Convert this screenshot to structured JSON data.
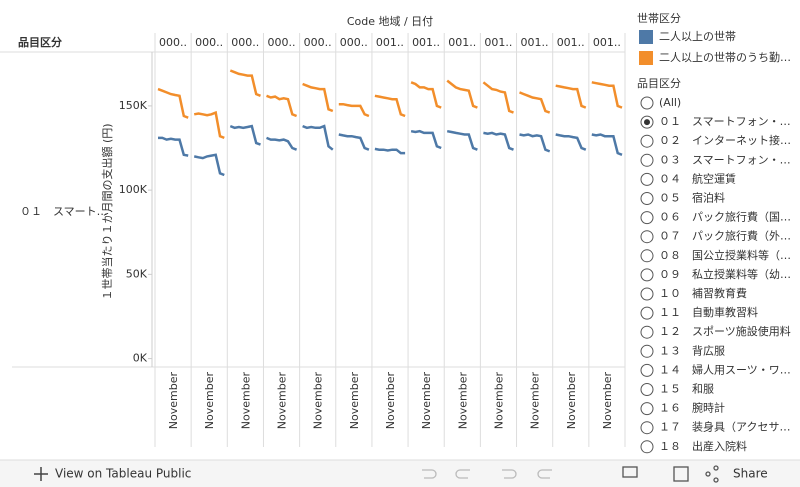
{
  "chart_data": {
    "type": "line",
    "title": "Code 地域 / 日付",
    "row_header": "品目区分",
    "row_label": "０１　スマート…",
    "ylabel": "１世帯当たり１か月間の支出額 (円)",
    "panes": [
      "000..",
      "000..",
      "000..",
      "000..",
      "000..",
      "000..",
      "001..",
      "001..",
      "001..",
      "001..",
      "001..",
      "001..",
      "001.."
    ],
    "pane_xtick": "November",
    "ylim": [
      -5000,
      182000
    ],
    "yticks": [
      {
        "value": 0,
        "label": "0K"
      },
      {
        "value": 50000,
        "label": "50K"
      },
      {
        "value": 100000,
        "label": "100K"
      },
      {
        "value": 150000,
        "label": "150K"
      }
    ],
    "legend_title": "世帯区分",
    "series": [
      {
        "name": "二人以上の世帯",
        "color": "#4e79a7",
        "values": [
          [
            131000,
            131000,
            130000,
            130500,
            130000,
            130000,
            121000,
            120500
          ],
          [
            120000,
            119500,
            119000,
            120000,
            120500,
            121000,
            110000,
            109000
          ],
          [
            138000,
            137000,
            137500,
            137000,
            137500,
            138000,
            128000,
            127000
          ],
          [
            131000,
            130000,
            130000,
            129500,
            130000,
            129000,
            125000,
            124000
          ],
          [
            138000,
            137000,
            137500,
            137000,
            137000,
            138000,
            126000,
            124000
          ],
          [
            133000,
            132500,
            132000,
            132000,
            131500,
            131000,
            125000,
            124000
          ],
          [
            124500,
            124000,
            124000,
            123500,
            124000,
            124000,
            122000,
            122000
          ],
          [
            135000,
            134500,
            135000,
            134000,
            134000,
            134000,
            126000,
            125000
          ],
          [
            135000,
            134500,
            134000,
            133500,
            133000,
            133000,
            125000,
            124000
          ],
          [
            134000,
            133500,
            134000,
            133000,
            133500,
            133000,
            125000,
            124000
          ],
          [
            133000,
            132500,
            133000,
            132000,
            132500,
            132000,
            124000,
            123000
          ],
          [
            133000,
            132500,
            132000,
            132000,
            131500,
            131000,
            125000,
            124000
          ],
          [
            133000,
            132500,
            133000,
            132000,
            132000,
            132000,
            122000,
            121000
          ]
        ]
      },
      {
        "name": "二人以上の世帯のうち勤…",
        "color": "#f28e2b",
        "values": [
          [
            160000,
            159000,
            158000,
            157000,
            156500,
            156000,
            144000,
            143000
          ],
          [
            145000,
            145500,
            145000,
            144500,
            145000,
            146000,
            132000,
            131000
          ],
          [
            171000,
            170000,
            169000,
            168500,
            168000,
            168000,
            157000,
            156000
          ],
          [
            156000,
            155000,
            155500,
            154000,
            154500,
            154000,
            145000,
            144000
          ],
          [
            163000,
            162000,
            161000,
            160500,
            160000,
            160000,
            148000,
            147000
          ],
          [
            151000,
            151000,
            150500,
            150000,
            150000,
            150000,
            145000,
            144000
          ],
          [
            156000,
            155500,
            155000,
            154500,
            154000,
            154000,
            145000,
            144000
          ],
          [
            164000,
            163000,
            161000,
            161000,
            160000,
            160000,
            150000,
            149000
          ],
          [
            165000,
            163000,
            161000,
            160000,
            159500,
            159000,
            150000,
            149000
          ],
          [
            164000,
            162000,
            160000,
            159500,
            158500,
            158000,
            147000,
            146000
          ],
          [
            158000,
            157000,
            156000,
            155000,
            154500,
            154000,
            147000,
            146000
          ],
          [
            162000,
            161500,
            161000,
            160500,
            160000,
            160000,
            150000,
            149000
          ],
          [
            164000,
            163500,
            163000,
            162500,
            162000,
            162000,
            150000,
            149000
          ]
        ]
      }
    ],
    "filter": {
      "title": "品目区分",
      "selected": 1,
      "items": [
        "(All)",
        "０１　スマートフォン・…",
        "０２　インターネット接…",
        "０３　スマートフォン・…",
        "０４　航空運賃",
        "０５　宿泊料",
        "０６　パック旅行費（国…",
        "０７　パック旅行費（外…",
        "０８　国公立授業料等（…",
        "０９　私立授業料等（幼…",
        "１０　補習教育費",
        "１１　自動車教習料",
        "１２　スポーツ施設使用料",
        "１３　背広服",
        "１４　婦人用スーツ・ワ…",
        "１５　和服",
        "１６　腕時計",
        "１７　装身具（アクセサ…",
        "１８　出産入院料"
      ]
    },
    "toolbar": {
      "view": "View on Tableau Public",
      "share": "Share"
    }
  }
}
